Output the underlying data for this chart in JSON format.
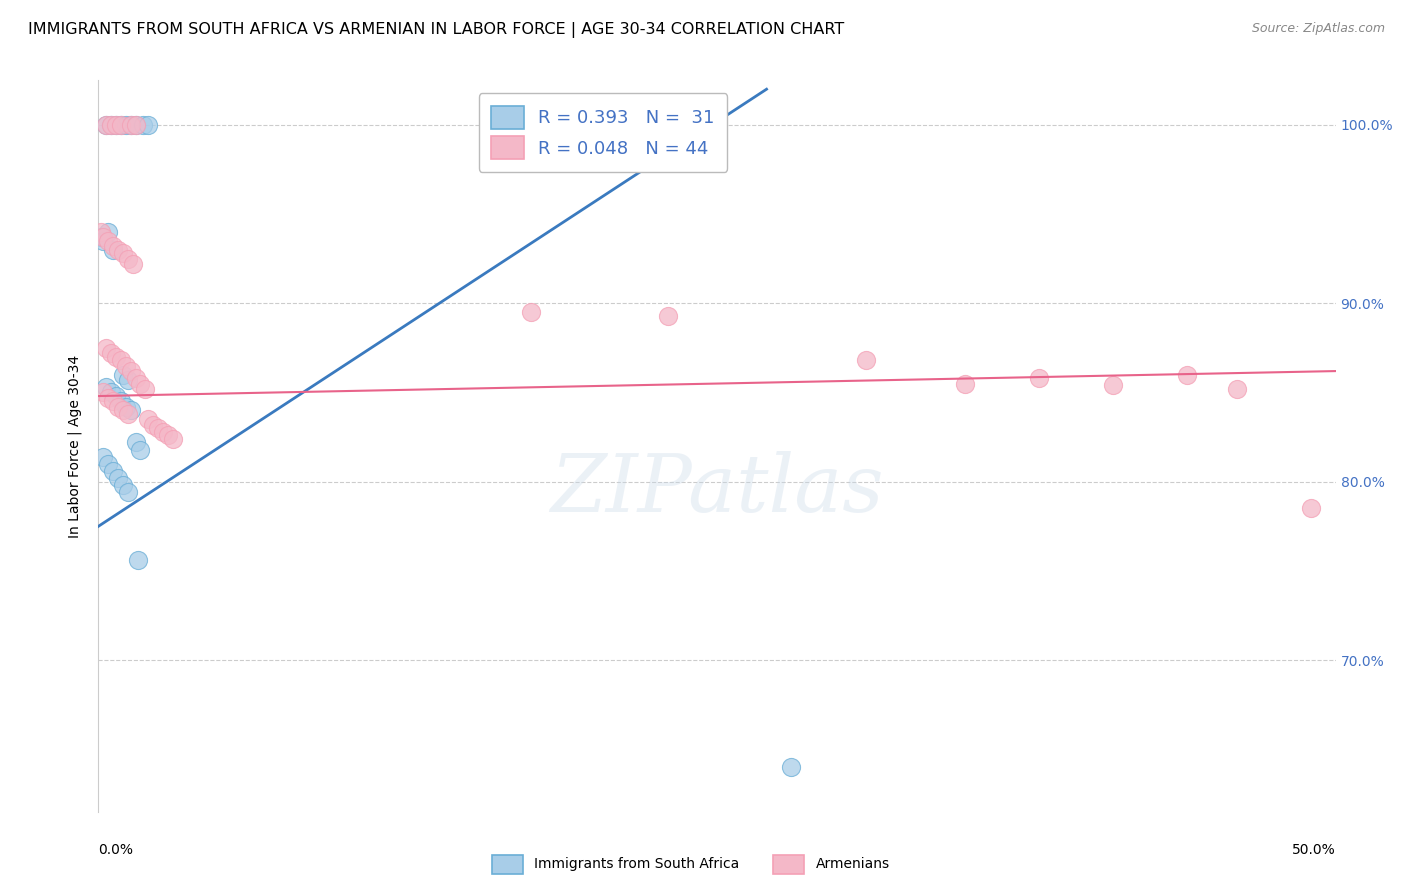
{
  "title": "IMMIGRANTS FROM SOUTH AFRICA VS ARMENIAN IN LABOR FORCE | AGE 30-34 CORRELATION CHART",
  "source": "Source: ZipAtlas.com",
  "ylabel": "In Labor Force | Age 30-34",
  "ytick_labels": [
    "100.0%",
    "90.0%",
    "80.0%",
    "70.0%"
  ],
  "ytick_values": [
    1.0,
    0.9,
    0.8,
    0.7
  ],
  "xlim": [
    0.0,
    0.5
  ],
  "ylim": [
    0.615,
    1.025
  ],
  "blue_scatter_x": [
    0.003,
    0.005,
    0.007,
    0.009,
    0.011,
    0.013,
    0.015,
    0.018,
    0.02,
    0.001,
    0.002,
    0.004,
    0.006,
    0.01,
    0.012,
    0.003,
    0.005,
    0.007,
    0.009,
    0.011,
    0.013,
    0.015,
    0.017,
    0.002,
    0.004,
    0.006,
    0.008,
    0.01,
    0.012,
    0.016,
    0.28
  ],
  "blue_scatter_y": [
    1.0,
    1.0,
    1.0,
    1.0,
    1.0,
    1.0,
    1.0,
    1.0,
    1.0,
    0.937,
    0.935,
    0.94,
    0.93,
    0.86,
    0.857,
    0.853,
    0.85,
    0.848,
    0.845,
    0.842,
    0.84,
    0.822,
    0.818,
    0.814,
    0.81,
    0.806,
    0.802,
    0.798,
    0.794,
    0.756,
    0.64
  ],
  "pink_scatter_x": [
    0.003,
    0.005,
    0.007,
    0.009,
    0.013,
    0.015,
    0.001,
    0.002,
    0.004,
    0.006,
    0.008,
    0.01,
    0.012,
    0.014,
    0.003,
    0.005,
    0.007,
    0.009,
    0.011,
    0.013,
    0.015,
    0.017,
    0.019,
    0.002,
    0.004,
    0.006,
    0.008,
    0.01,
    0.012,
    0.02,
    0.022,
    0.024,
    0.026,
    0.028,
    0.03,
    0.175,
    0.23,
    0.31,
    0.35,
    0.38,
    0.41,
    0.44,
    0.46,
    0.49
  ],
  "pink_scatter_y": [
    1.0,
    1.0,
    1.0,
    1.0,
    1.0,
    1.0,
    0.94,
    0.937,
    0.935,
    0.932,
    0.93,
    0.928,
    0.925,
    0.922,
    0.875,
    0.872,
    0.87,
    0.868,
    0.865,
    0.862,
    0.858,
    0.855,
    0.852,
    0.85,
    0.847,
    0.845,
    0.842,
    0.84,
    0.838,
    0.835,
    0.832,
    0.83,
    0.828,
    0.826,
    0.824,
    0.895,
    0.893,
    0.868,
    0.855,
    0.858,
    0.854,
    0.86,
    0.852,
    0.785
  ],
  "blue_line_x": [
    0.0,
    0.27
  ],
  "blue_line_y": [
    0.775,
    1.02
  ],
  "pink_line_x": [
    0.0,
    0.5
  ],
  "pink_line_y": [
    0.848,
    0.862
  ],
  "legend_blue_R": "0.393",
  "legend_blue_N": "31",
  "legend_pink_R": "0.048",
  "legend_pink_N": "44",
  "blue_color": "#a8cde8",
  "pink_color": "#f4b8c8",
  "blue_edge_color": "#6aaed6",
  "pink_edge_color": "#f4a0b5",
  "blue_line_color": "#3a7abf",
  "pink_line_color": "#e8638a",
  "watermark_text": "ZIPatlas",
  "legend_label_blue": "Immigrants from South Africa",
  "legend_label_pink": "Armenians",
  "grid_color": "#cccccc",
  "right_axis_color": "#4472c4",
  "title_fontsize": 11.5,
  "source_fontsize": 9
}
